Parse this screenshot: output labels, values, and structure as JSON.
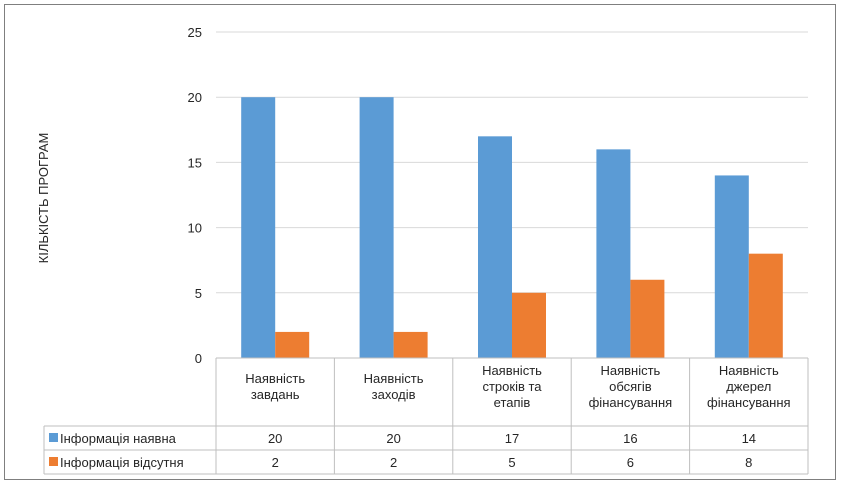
{
  "chart_data": {
    "type": "bar",
    "ylabel": "КІЛЬКІСТЬ ПРОГРАМ",
    "ylim": [
      0,
      25
    ],
    "yticks": [
      0,
      5,
      10,
      15,
      20,
      25
    ],
    "grid": true,
    "legend_placement": "data-table",
    "categories": [
      [
        "Наявність",
        "завдань"
      ],
      [
        "Наявність",
        "заходів"
      ],
      [
        "Наявність",
        "строків та",
        "етапів"
      ],
      [
        "Наявність",
        "обсягів",
        "фінансування"
      ],
      [
        "Наявність",
        "джерел",
        "фінансування"
      ]
    ],
    "series": [
      {
        "name": "Інформація наявна",
        "color": "#5b9bd5",
        "values": [
          20,
          20,
          17,
          16,
          14
        ]
      },
      {
        "name": "Інформація відсутня",
        "color": "#ed7d31",
        "values": [
          2,
          2,
          5,
          6,
          8
        ]
      }
    ]
  }
}
